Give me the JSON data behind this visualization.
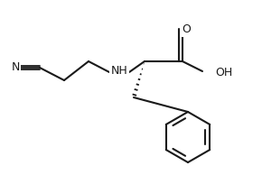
{
  "bg_color": "#ffffff",
  "line_color": "#1a1a1a",
  "line_width": 1.5,
  "figsize": [
    2.9,
    1.94
  ],
  "dpi": 100,
  "atoms": {
    "N_nitrile": "N",
    "NH": "NH",
    "O_carbonyl": "O",
    "OH": "OH"
  }
}
